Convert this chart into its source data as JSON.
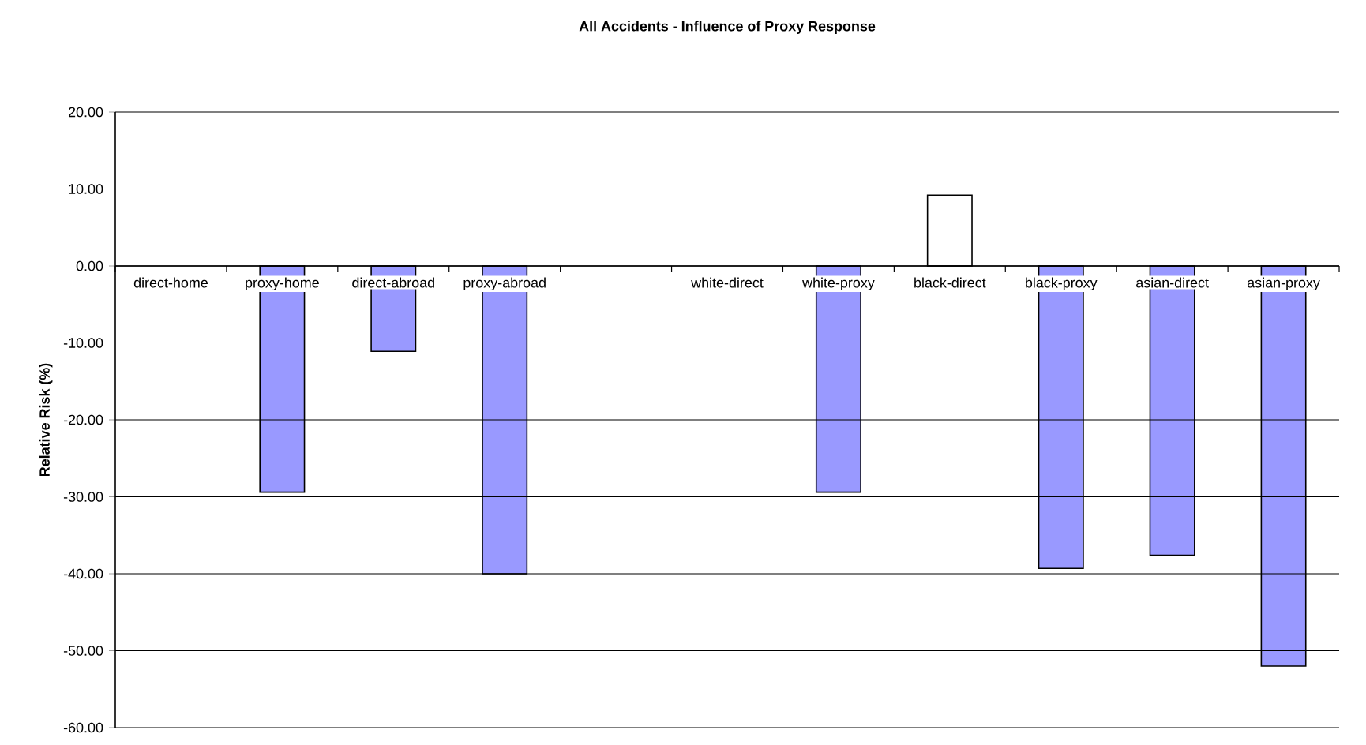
{
  "chart_data": {
    "type": "bar",
    "title": "All Accidents - Influence of Proxy Response",
    "ylabel": "Relative Risk (%)",
    "categories": [
      "direct-home",
      "proxy-home",
      "direct-abroad",
      "proxy-abroad",
      null,
      "white-direct",
      "white-proxy",
      "black-direct",
      "black-proxy",
      "asian-direct",
      "asian-proxy"
    ],
    "values": [
      null,
      -29.4,
      -11.1,
      -40.0,
      null,
      null,
      -29.4,
      9.2,
      -39.3,
      -37.6,
      -52.0
    ],
    "colors": [
      "#9999ff",
      "#9999ff",
      "#9999ff",
      "#9999ff",
      "#9999ff",
      "#9999ff",
      "#9999ff",
      "#ffffff",
      "#9999ff",
      "#9999ff",
      "#9999ff"
    ],
    "ylim": [
      -60,
      20
    ],
    "yticks": [
      {
        "value": 20,
        "label": "20.00"
      },
      {
        "value": 10,
        "label": "10.00"
      },
      {
        "value": 0,
        "label": "0.00"
      },
      {
        "value": -10,
        "label": "-10.00"
      },
      {
        "value": -20,
        "label": "-20.00"
      },
      {
        "value": -30,
        "label": "-30.00"
      },
      {
        "value": -40,
        "label": "-40.00"
      },
      {
        "value": -50,
        "label": "-50.00"
      },
      {
        "value": -60,
        "label": "-60.00"
      }
    ],
    "grid": "y"
  }
}
